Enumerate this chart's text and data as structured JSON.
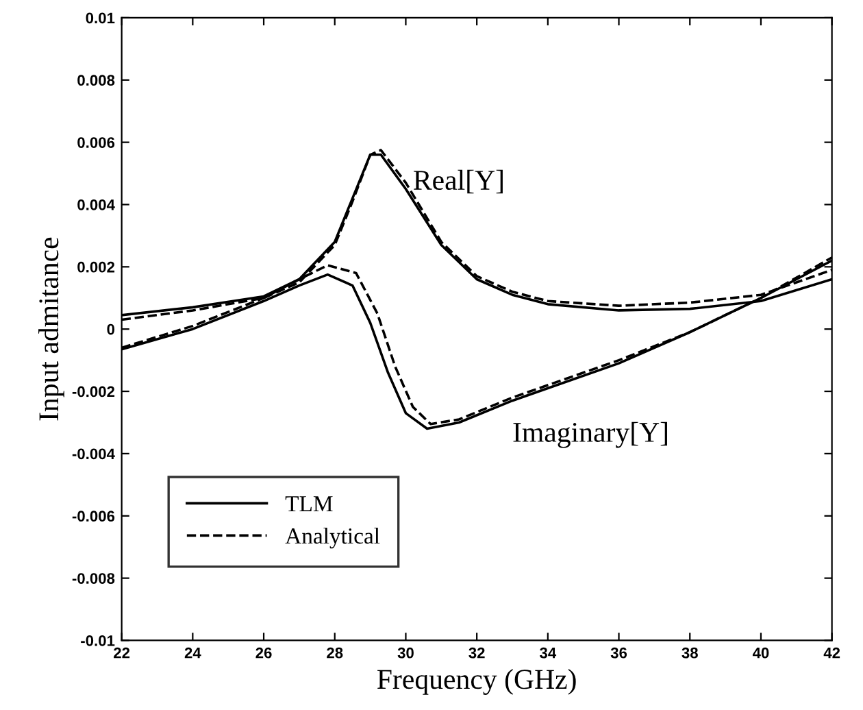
{
  "chart_data": {
    "type": "line",
    "xlabel": "Frequency (GHz)",
    "ylabel": "Input admitance",
    "xlim": [
      22,
      42
    ],
    "ylim": [
      -0.01,
      0.01
    ],
    "xticks": [
      22,
      24,
      26,
      28,
      30,
      32,
      34,
      36,
      38,
      40,
      42
    ],
    "yticks": [
      -0.01,
      -0.008,
      -0.006,
      -0.004,
      -0.002,
      0,
      0.002,
      0.004,
      0.006,
      0.008,
      0.01
    ],
    "grid": false,
    "legend": "bottom left",
    "marker": "none",
    "annotations": [
      {
        "text": "Real[Y]",
        "x": 30.2,
        "y": 0.0047
      },
      "Imaginary[Y]"
    ],
    "series": [
      {
        "name": "TLM",
        "color": "#000000",
        "line_style": "solid",
        "x": [
          22,
          24,
          26,
          27,
          28,
          28.5,
          29,
          29.3,
          30,
          31,
          32,
          33,
          34,
          36,
          38,
          40,
          42
        ],
        "values": [
          0.00045,
          0.0007,
          0.00105,
          0.0016,
          0.0028,
          0.0042,
          0.0056,
          0.0056,
          0.0045,
          0.0027,
          0.0016,
          0.0011,
          0.0008,
          0.0006,
          0.00065,
          0.0009,
          0.0016
        ]
      },
      {
        "name": "Analytical",
        "color": "#000000",
        "line_style": "dashed",
        "x": [
          22,
          24,
          26,
          27,
          28,
          28.5,
          29,
          29.3,
          30,
          31,
          32,
          33,
          34,
          36,
          38,
          40,
          42
        ],
        "values": [
          0.0003,
          0.0006,
          0.001,
          0.0015,
          0.0027,
          0.0041,
          0.0056,
          0.00575,
          0.0047,
          0.0028,
          0.0017,
          0.0012,
          0.0009,
          0.00075,
          0.00085,
          0.0011,
          0.0019
        ]
      },
      {
        "color": "#000000",
        "line_style": "solid",
        "x": [
          22,
          24,
          26,
          27,
          27.8,
          28.5,
          29,
          29.5,
          30,
          30.6,
          31.5,
          33,
          36,
          38,
          40,
          42
        ],
        "values": [
          -0.00065,
          0.0,
          0.0009,
          0.0014,
          0.00175,
          0.0014,
          0.0002,
          -0.0014,
          -0.0027,
          -0.0032,
          -0.003,
          -0.0023,
          -0.0011,
          -0.0001,
          0.001,
          0.0022
        ]
      },
      {
        "color": "#000000",
        "line_style": "dashed",
        "x": [
          22,
          24,
          26,
          27,
          27.8,
          28.6,
          29.2,
          29.7,
          30.2,
          30.7,
          31.5,
          33,
          36,
          38,
          40,
          42
        ],
        "values": [
          -0.0006,
          0.0001,
          0.001,
          0.0016,
          0.00205,
          0.0018,
          0.0005,
          -0.0012,
          -0.0025,
          -0.00305,
          -0.0029,
          -0.0022,
          -0.001,
          -0.0001,
          0.001,
          0.0023
        ]
      }
    ]
  }
}
